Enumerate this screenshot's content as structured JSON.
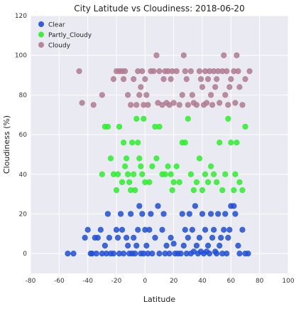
{
  "chart_data": {
    "type": "scatter",
    "title": "City Latitude vs Cloudiness: 2018-06-20",
    "xlabel": "Latitude",
    "ylabel": "Cloudiness (%)",
    "xlim": [
      -80,
      100
    ],
    "ylim": [
      -10,
      120
    ],
    "xticks": [
      -80,
      -60,
      -40,
      -20,
      0,
      20,
      40,
      60,
      80,
      100
    ],
    "yticks": [
      0,
      20,
      40,
      60,
      80,
      100,
      120
    ],
    "grid": true,
    "legend_position": "top-left",
    "background": "#eaeaf2",
    "series": [
      {
        "name": "Clear",
        "color": "#1f4fd6",
        "points": [
          [
            -54,
            0
          ],
          [
            -50,
            0
          ],
          [
            -42,
            8
          ],
          [
            -40,
            12
          ],
          [
            -38,
            0
          ],
          [
            -37,
            0
          ],
          [
            -35,
            8
          ],
          [
            -34,
            0
          ],
          [
            -33,
            8
          ],
          [
            -31,
            12
          ],
          [
            -30,
            0
          ],
          [
            -28,
            4
          ],
          [
            -27,
            0
          ],
          [
            -26,
            20
          ],
          [
            -25,
            8
          ],
          [
            -24,
            0
          ],
          [
            -22,
            0
          ],
          [
            -20,
            12
          ],
          [
            -19,
            8
          ],
          [
            -18,
            0
          ],
          [
            -17,
            20
          ],
          [
            -16,
            12
          ],
          [
            -15,
            0
          ],
          [
            -13,
            8
          ],
          [
            -12,
            4
          ],
          [
            -11,
            0
          ],
          [
            -10,
            20
          ],
          [
            -9,
            0
          ],
          [
            -8,
            8
          ],
          [
            -7,
            0
          ],
          [
            -6,
            4
          ],
          [
            -5,
            12
          ],
          [
            -4,
            24
          ],
          [
            -3,
            0
          ],
          [
            -2,
            20
          ],
          [
            -1,
            0
          ],
          [
            0,
            12
          ],
          [
            1,
            4
          ],
          [
            2,
            0
          ],
          [
            3,
            12
          ],
          [
            4,
            20
          ],
          [
            5,
            0
          ],
          [
            7,
            8
          ],
          [
            9,
            24
          ],
          [
            10,
            0
          ],
          [
            12,
            12
          ],
          [
            13,
            20
          ],
          [
            14,
            0
          ],
          [
            15,
            4
          ],
          [
            17,
            0
          ],
          [
            18,
            8
          ],
          [
            20,
            5
          ],
          [
            21,
            0
          ],
          [
            23,
            0
          ],
          [
            25,
            0
          ],
          [
            26,
            20
          ],
          [
            27,
            4
          ],
          [
            28,
            12
          ],
          [
            29,
            0
          ],
          [
            30,
            8
          ],
          [
            31,
            20
          ],
          [
            32,
            0
          ],
          [
            33,
            12
          ],
          [
            34,
            1
          ],
          [
            35,
            24
          ],
          [
            36,
            4
          ],
          [
            37,
            0
          ],
          [
            38,
            8
          ],
          [
            39,
            1
          ],
          [
            40,
            20
          ],
          [
            41,
            0
          ],
          [
            42,
            12
          ],
          [
            43,
            1
          ],
          [
            44,
            4
          ],
          [
            45,
            0
          ],
          [
            46,
            20
          ],
          [
            47,
            8
          ],
          [
            48,
            12
          ],
          [
            49,
            1
          ],
          [
            50,
            0
          ],
          [
            51,
            20
          ],
          [
            52,
            4
          ],
          [
            53,
            8
          ],
          [
            54,
            0
          ],
          [
            55,
            12
          ],
          [
            56,
            20
          ],
          [
            57,
            0
          ],
          [
            58,
            8
          ],
          [
            59,
            12
          ],
          [
            60,
            24
          ],
          [
            62,
            24
          ],
          [
            63,
            20
          ],
          [
            65,
            4
          ],
          [
            66,
            0
          ],
          [
            68,
            12
          ],
          [
            70,
            0
          ],
          [
            72,
            0
          ]
        ]
      },
      {
        "name": "Partly_Cloudy",
        "color": "#2bef2b",
        "points": [
          [
            -30,
            40
          ],
          [
            -28,
            64
          ],
          [
            -26,
            64
          ],
          [
            -24,
            48
          ],
          [
            -22,
            40
          ],
          [
            -20,
            32
          ],
          [
            -19,
            40
          ],
          [
            -18,
            64
          ],
          [
            -16,
            36
          ],
          [
            -15,
            56
          ],
          [
            -14,
            44
          ],
          [
            -13,
            48
          ],
          [
            -12,
            40
          ],
          [
            -11,
            36
          ],
          [
            -10,
            32
          ],
          [
            -9,
            56
          ],
          [
            -8,
            40
          ],
          [
            -7,
            32
          ],
          [
            -6,
            68
          ],
          [
            -5,
            56
          ],
          [
            -4,
            48
          ],
          [
            -3,
            44
          ],
          [
            -2,
            40
          ],
          [
            -1,
            68
          ],
          [
            0,
            36
          ],
          [
            3,
            36
          ],
          [
            5,
            44
          ],
          [
            7,
            64
          ],
          [
            8,
            48
          ],
          [
            10,
            64
          ],
          [
            12,
            40
          ],
          [
            14,
            40
          ],
          [
            16,
            44
          ],
          [
            18,
            40
          ],
          [
            19,
            32
          ],
          [
            20,
            36
          ],
          [
            22,
            44
          ],
          [
            24,
            36
          ],
          [
            26,
            56
          ],
          [
            28,
            56
          ],
          [
            30,
            68
          ],
          [
            32,
            40
          ],
          [
            34,
            32
          ],
          [
            36,
            36
          ],
          [
            38,
            48
          ],
          [
            40,
            32
          ],
          [
            42,
            40
          ],
          [
            44,
            36
          ],
          [
            46,
            44
          ],
          [
            48,
            40
          ],
          [
            50,
            36
          ],
          [
            52,
            56
          ],
          [
            54,
            32
          ],
          [
            56,
            40
          ],
          [
            58,
            68
          ],
          [
            60,
            56
          ],
          [
            62,
            32
          ],
          [
            63,
            40
          ],
          [
            64,
            56
          ],
          [
            66,
            36
          ],
          [
            68,
            32
          ],
          [
            70,
            64
          ]
        ]
      },
      {
        "name": "Cloudy",
        "color": "#b07a90",
        "points": [
          [
            -46,
            92
          ],
          [
            -44,
            76
          ],
          [
            -36,
            75
          ],
          [
            -30,
            80
          ],
          [
            -22,
            88
          ],
          [
            -20,
            92
          ],
          [
            -18,
            92
          ],
          [
            -16,
            92
          ],
          [
            -15,
            88
          ],
          [
            -14,
            92
          ],
          [
            -12,
            80
          ],
          [
            -10,
            75
          ],
          [
            -8,
            88
          ],
          [
            -6,
            75
          ],
          [
            -5,
            92
          ],
          [
            -4,
            80
          ],
          [
            -3,
            84
          ],
          [
            -2,
            92
          ],
          [
            -1,
            75
          ],
          [
            0,
            88
          ],
          [
            1,
            80
          ],
          [
            2,
            75
          ],
          [
            4,
            92
          ],
          [
            6,
            92
          ],
          [
            8,
            100
          ],
          [
            9,
            76
          ],
          [
            10,
            92
          ],
          [
            12,
            75
          ],
          [
            13,
            88
          ],
          [
            14,
            92
          ],
          [
            15,
            76
          ],
          [
            16,
            92
          ],
          [
            17,
            75
          ],
          [
            18,
            88
          ],
          [
            19,
            92
          ],
          [
            20,
            76
          ],
          [
            22,
            92
          ],
          [
            24,
            75
          ],
          [
            26,
            80
          ],
          [
            27,
            100
          ],
          [
            28,
            92
          ],
          [
            29,
            88
          ],
          [
            30,
            75
          ],
          [
            32,
            92
          ],
          [
            33,
            80
          ],
          [
            34,
            76
          ],
          [
            36,
            75
          ],
          [
            38,
            92
          ],
          [
            39,
            88
          ],
          [
            40,
            84
          ],
          [
            41,
            75
          ],
          [
            42,
            92
          ],
          [
            43,
            76
          ],
          [
            44,
            88
          ],
          [
            45,
            92
          ],
          [
            46,
            80
          ],
          [
            47,
            75
          ],
          [
            48,
            92
          ],
          [
            49,
            84
          ],
          [
            50,
            88
          ],
          [
            51,
            92
          ],
          [
            52,
            76
          ],
          [
            54,
            92
          ],
          [
            55,
            100
          ],
          [
            56,
            80
          ],
          [
            57,
            92
          ],
          [
            58,
            75
          ],
          [
            59,
            84
          ],
          [
            60,
            88
          ],
          [
            62,
            92
          ],
          [
            63,
            76
          ],
          [
            64,
            100
          ],
          [
            65,
            92
          ],
          [
            66,
            84
          ],
          [
            68,
            75
          ],
          [
            70,
            88
          ],
          [
            73,
            92
          ]
        ]
      }
    ]
  }
}
